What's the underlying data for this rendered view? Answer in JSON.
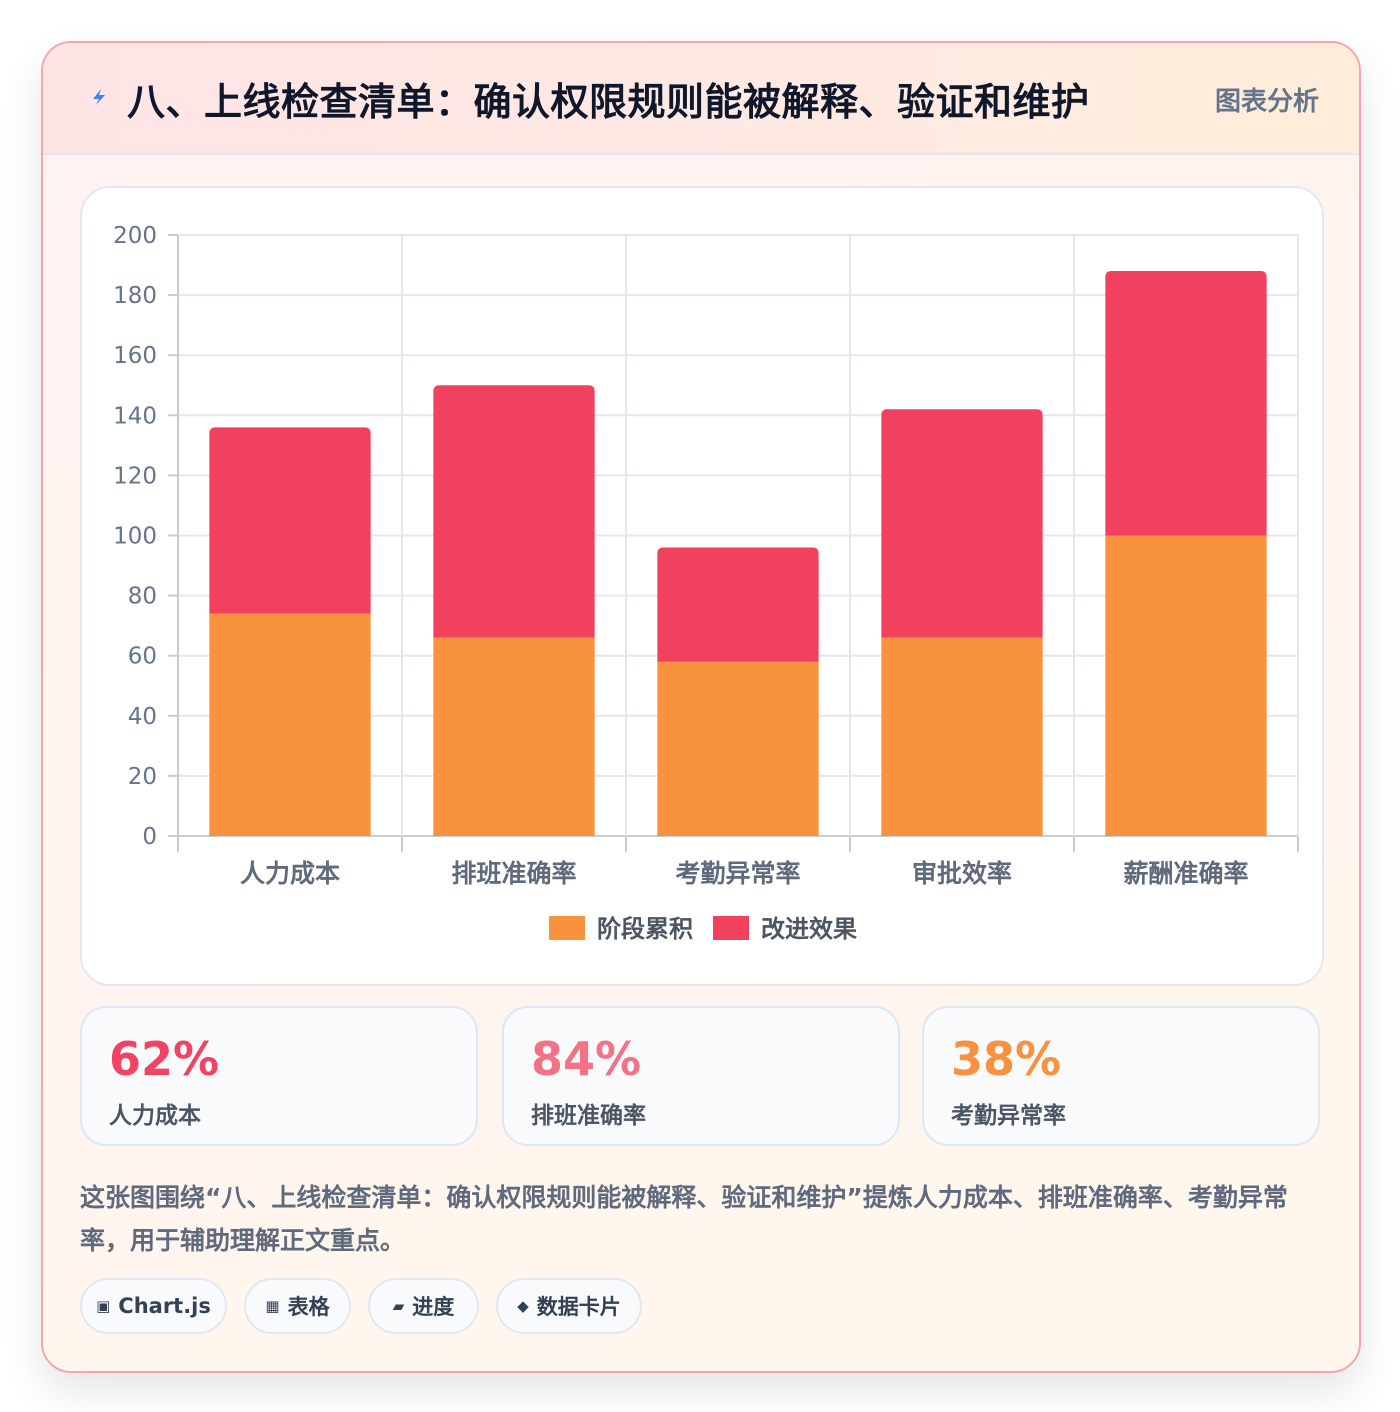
{
  "header": {
    "title": "八、上线检查清单：确认权限规则能被解释、验证和维护",
    "tag": "图表分析",
    "icon": "lightning-icon"
  },
  "chart_data": {
    "type": "bar",
    "stacked": true,
    "categories": [
      "人力成本",
      "排班准确率",
      "考勤异常率",
      "审批效率",
      "薪酬准确率"
    ],
    "series": [
      {
        "name": "阶段累积",
        "color": "#f9923e",
        "values": [
          74,
          66,
          58,
          66,
          100
        ]
      },
      {
        "name": "改进效果",
        "color": "#f2405f",
        "values": [
          62,
          84,
          38,
          76,
          88
        ]
      }
    ],
    "ylim": [
      0,
      200
    ],
    "yticks": [
      0,
      20,
      40,
      60,
      80,
      100,
      120,
      140,
      160,
      180,
      200
    ],
    "grid": true,
    "legend": "bottom-center"
  },
  "stats": [
    {
      "value": "62%",
      "label": "人力成本",
      "color": "#ef4463"
    },
    {
      "value": "84%",
      "label": "排班准确率",
      "color": "#f47286"
    },
    {
      "value": "38%",
      "label": "考勤异常率",
      "color": "#f9923e"
    }
  ],
  "caption": "这张图围绕“八、上线检查清单：确认权限规则能被解释、验证和维护”提炼人力成本、排班准确率、考勤异常率，用于辅助理解正文重点。",
  "chips": [
    {
      "icon": "▣",
      "label": "Chart.js",
      "icon_name": "chart-icon"
    },
    {
      "icon": "▦",
      "label": "表格",
      "icon_name": "table-icon"
    },
    {
      "icon": "▰",
      "label": "进度",
      "icon_name": "progress-icon"
    },
    {
      "icon": "◆",
      "label": "数据卡片",
      "icon_name": "diamond-icon"
    }
  ]
}
